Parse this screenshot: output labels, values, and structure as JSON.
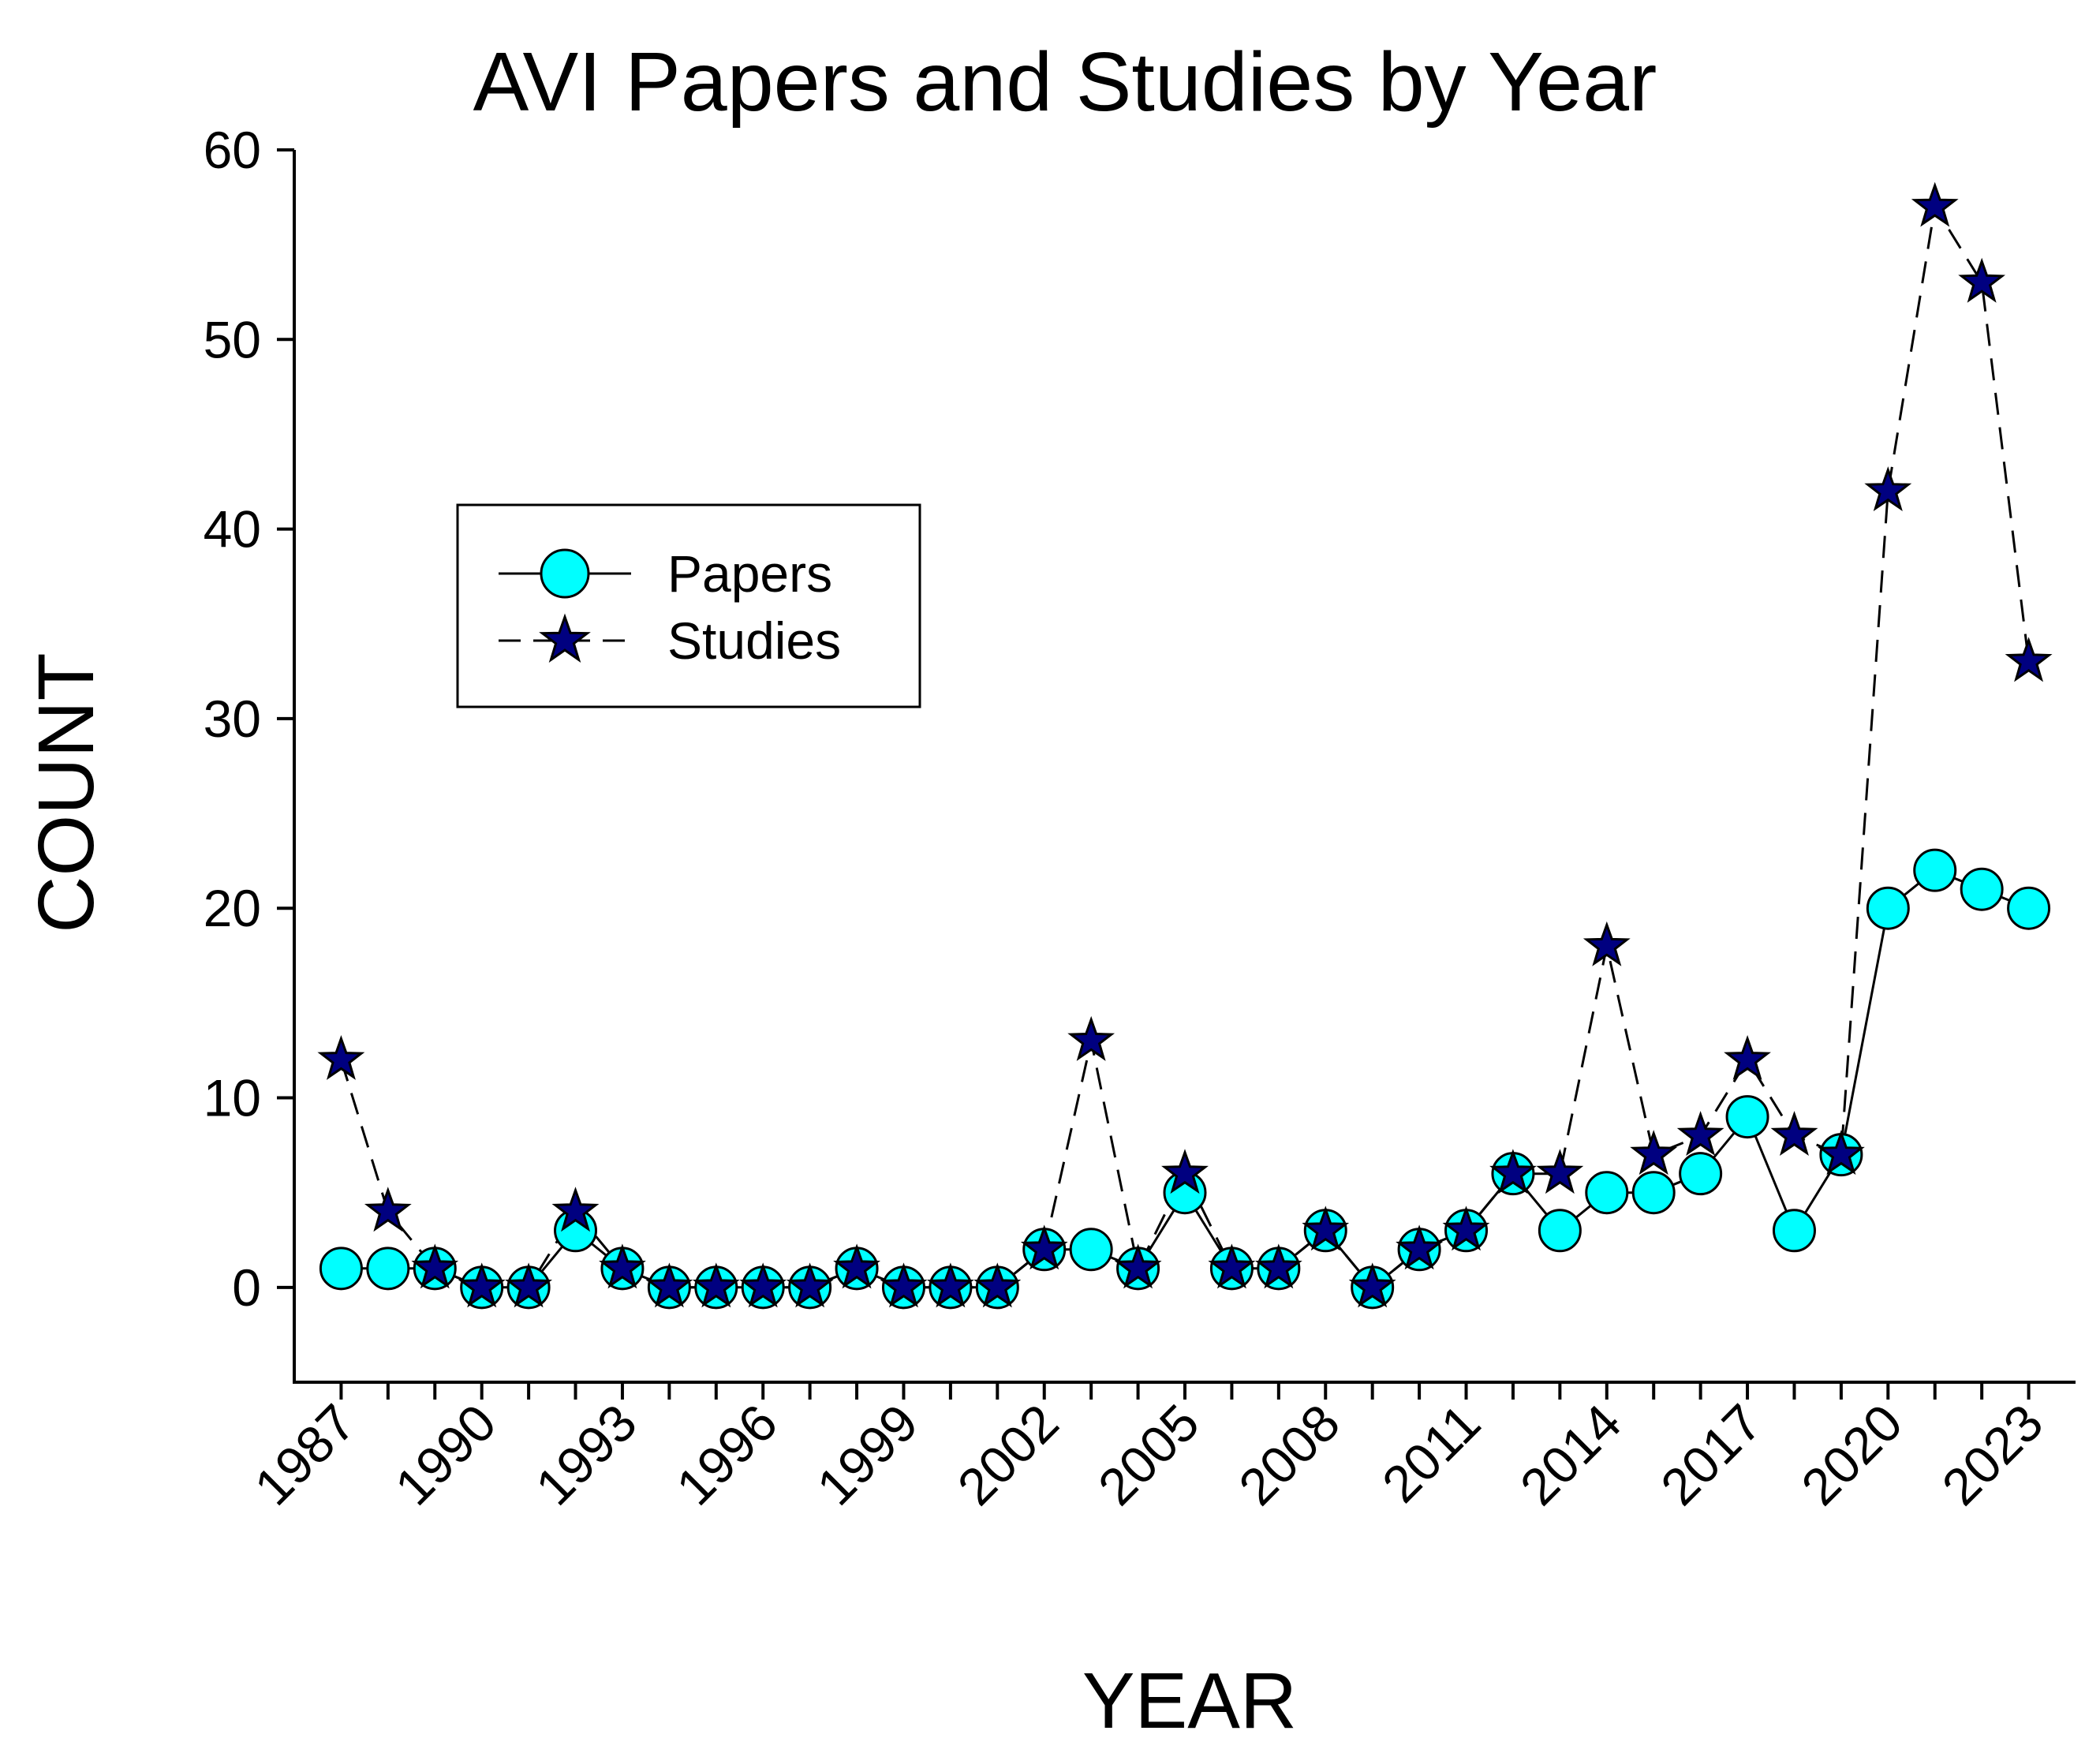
{
  "chart_data": {
    "type": "line",
    "title": "AVI Papers and Studies by Year",
    "xlabel": "YEAR",
    "ylabel": "COUNT",
    "x": [
      1987,
      1988,
      1989,
      1990,
      1991,
      1992,
      1993,
      1994,
      1995,
      1996,
      1997,
      1998,
      1999,
      2000,
      2001,
      2002,
      2003,
      2004,
      2005,
      2006,
      2007,
      2008,
      2009,
      2010,
      2011,
      2012,
      2013,
      2014,
      2015,
      2016,
      2017,
      2018,
      2019,
      2020,
      2021,
      2022,
      2023
    ],
    "xticks": [
      1987,
      1990,
      1993,
      1996,
      1999,
      2002,
      2005,
      2008,
      2011,
      2014,
      2017,
      2020,
      2023
    ],
    "xlim": [
      1986,
      2024
    ],
    "ylim": [
      -5,
      60
    ],
    "yticks": [
      0,
      10,
      20,
      30,
      40,
      50,
      60
    ],
    "grid": false,
    "legend_position": "upper-left",
    "series": [
      {
        "name": "Papers",
        "marker": "circle",
        "line_style": "solid",
        "marker_color": "#00ffff",
        "values": [
          1,
          1,
          1,
          0,
          0,
          3,
          1,
          0,
          0,
          0,
          0,
          1,
          0,
          0,
          0,
          2,
          2,
          1,
          5,
          1,
          1,
          3,
          0,
          2,
          3,
          6,
          3,
          5,
          5,
          6,
          9,
          3,
          7,
          20,
          22,
          21,
          20
        ]
      },
      {
        "name": "Studies",
        "marker": "star",
        "line_style": "dashed",
        "marker_color": "#000080",
        "values": [
          12,
          4,
          1,
          0,
          0,
          4,
          1,
          0,
          0,
          0,
          0,
          1,
          0,
          0,
          0,
          2,
          13,
          1,
          6,
          1,
          1,
          3,
          0,
          2,
          3,
          6,
          6,
          18,
          7,
          8,
          12,
          8,
          7,
          42,
          57,
          53,
          33
        ]
      }
    ]
  }
}
